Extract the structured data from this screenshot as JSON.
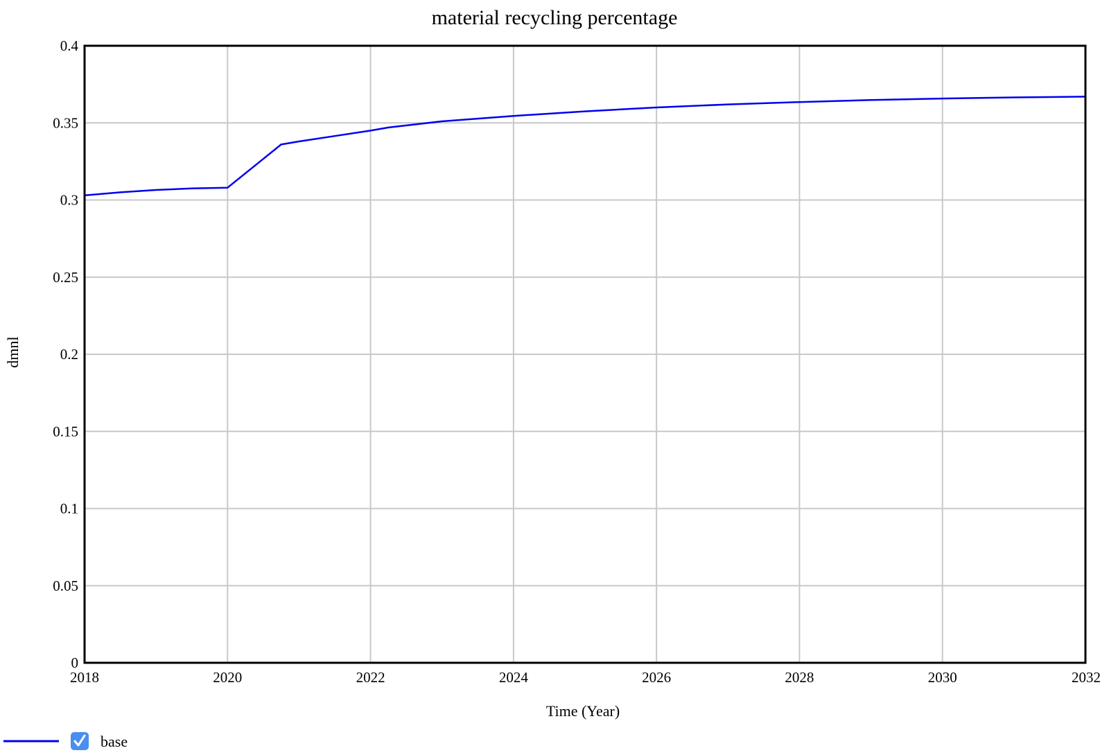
{
  "chart_data": {
    "type": "line",
    "title": "material recycling percentage",
    "xlabel": "Time (Year)",
    "ylabel": "dmnl",
    "xlim": [
      2018,
      2032
    ],
    "ylim": [
      0,
      0.4
    ],
    "x_ticks": [
      "2018",
      "2020",
      "2022",
      "2024",
      "2026",
      "2028",
      "2030",
      "2032"
    ],
    "y_ticks": [
      "0",
      "0.05",
      "0.1",
      "0.15",
      "0.2",
      "0.25",
      "0.3",
      "0.35",
      "0.4"
    ],
    "grid": true,
    "legend_position": "bottom-left",
    "series": [
      {
        "name": "base",
        "color": "#0000ee",
        "checked": true,
        "x": [
          2018,
          2018.5,
          2019,
          2019.5,
          2020,
          2020.75,
          2021,
          2021.5,
          2022,
          2022.25,
          2023,
          2024,
          2025,
          2026,
          2027,
          2028,
          2029,
          2030,
          2031,
          2032
        ],
        "y": [
          0.303,
          0.305,
          0.3065,
          0.3075,
          0.308,
          0.336,
          0.338,
          0.3415,
          0.345,
          0.347,
          0.351,
          0.3545,
          0.3575,
          0.36,
          0.362,
          0.3635,
          0.3648,
          0.3658,
          0.3665,
          0.367
        ]
      }
    ]
  }
}
